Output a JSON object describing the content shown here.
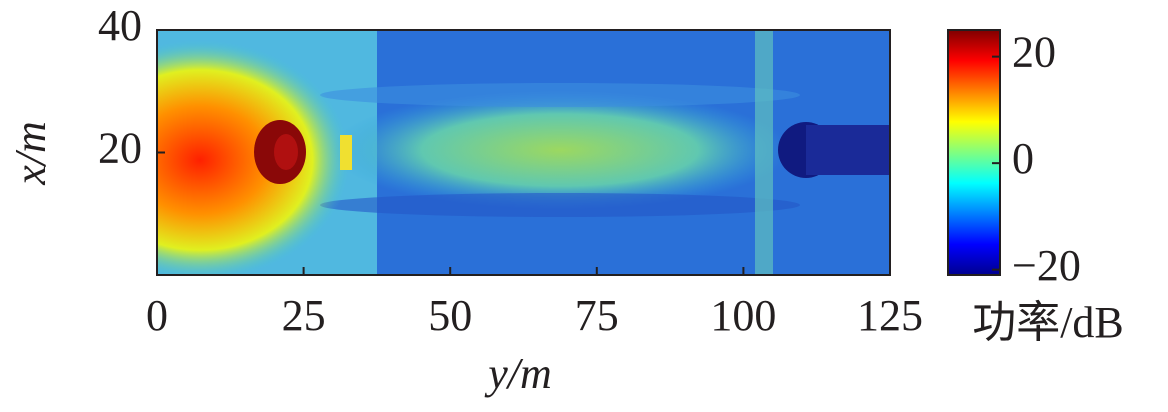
{
  "chart_data": {
    "type": "heatmap",
    "x_label": "y/m",
    "y_label": "x/m",
    "xlim": [
      0,
      125
    ],
    "xticks": [
      0,
      25,
      50,
      75,
      100,
      125
    ],
    "ylim": [
      0,
      40
    ],
    "yticks": [
      20,
      40
    ],
    "colorbar": {
      "label": "功率/dB",
      "lim": [
        -21,
        25
      ],
      "ticks": [
        {
          "value": -20,
          "label": "−20"
        },
        0,
        20
      ],
      "colormap": [
        "#00008f",
        "#0000ff",
        "#0080ff",
        "#00ffff",
        "#80ff80",
        "#ffff00",
        "#ff8000",
        "#ff0000",
        "#800000"
      ]
    }
  }
}
